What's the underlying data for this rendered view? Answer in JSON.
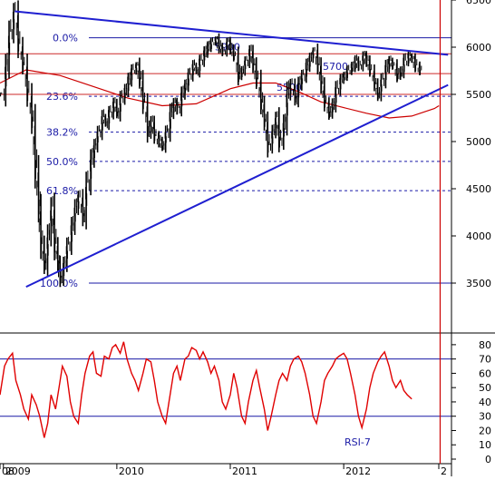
{
  "chart_data": [
    {
      "type": "line",
      "title": "",
      "y_axis": {
        "scale": "linear",
        "ylim": [
          3000,
          6500
        ],
        "tick_labels": [
          "6500",
          "6000",
          "5500",
          "5000",
          "4500",
          "4000",
          "3500"
        ]
      },
      "x_axis": {
        "range": [
          2008.97,
          2012.95
        ],
        "tick_labels": [
          "08",
          "2009",
          "2010",
          "2011",
          "2012",
          "2"
        ]
      },
      "grid": false,
      "fib_levels": [
        {
          "label": "0.0%",
          "value": 6100
        },
        {
          "label": "23.6%",
          "value": 5480
        },
        {
          "label": "38.2%",
          "value": 5100
        },
        {
          "label": "50.0%",
          "value": 4790
        },
        {
          "label": "61.8%",
          "value": 4480
        },
        {
          "label": "100.0%",
          "value": 3500
        }
      ],
      "resistance_levels": [
        {
          "label": "5900",
          "value": 5930
        },
        {
          "label": "5700",
          "value": 5720
        },
        {
          "label": "5500",
          "value": 5500
        }
      ],
      "trendlines": [
        {
          "name": "downtrend",
          "points": [
            [
              2009.1,
              6380
            ],
            [
              2012.92,
              5920
            ]
          ]
        },
        {
          "name": "uptrend",
          "points": [
            [
              2009.2,
              3460
            ],
            [
              2012.92,
              5600
            ]
          ]
        }
      ],
      "vertical_marker": {
        "x": 2012.85,
        "color": "#cc0000"
      },
      "moving_average": {
        "color": "#cc0000",
        "points": [
          [
            2008.97,
            5620
          ],
          [
            2009.2,
            5760
          ],
          [
            2009.5,
            5700
          ],
          [
            2009.8,
            5580
          ],
          [
            2010.1,
            5460
          ],
          [
            2010.4,
            5380
          ],
          [
            2010.7,
            5400
          ],
          [
            2011.0,
            5560
          ],
          [
            2011.2,
            5620
          ],
          [
            2011.4,
            5620
          ],
          [
            2011.6,
            5530
          ],
          [
            2011.8,
            5420
          ],
          [
            2012.0,
            5360
          ],
          [
            2012.2,
            5300
          ],
          [
            2012.4,
            5250
          ],
          [
            2012.6,
            5270
          ],
          [
            2012.8,
            5350
          ],
          [
            2012.84,
            5380
          ]
        ]
      },
      "series": [
        {
          "type": "price-bars",
          "color": "#000000",
          "points": [
            [
              2008.97,
              5500
            ],
            [
              2009.02,
              5800
            ],
            [
              2009.05,
              6150
            ],
            [
              2009.09,
              6360
            ],
            [
              2009.13,
              6020
            ],
            [
              2009.17,
              5800
            ],
            [
              2009.21,
              5500
            ],
            [
              2009.25,
              5200
            ],
            [
              2009.28,
              4700
            ],
            [
              2009.31,
              4300
            ],
            [
              2009.33,
              3900
            ],
            [
              2009.36,
              3700
            ],
            [
              2009.39,
              4000
            ],
            [
              2009.42,
              4300
            ],
            [
              2009.45,
              3900
            ],
            [
              2009.48,
              3700
            ],
            [
              2009.5,
              3550
            ],
            [
              2009.53,
              3700
            ],
            [
              2009.56,
              3900
            ],
            [
              2009.6,
              4100
            ],
            [
              2009.63,
              4300
            ],
            [
              2009.66,
              4400
            ],
            [
              2009.7,
              4200
            ],
            [
              2009.73,
              4550
            ],
            [
              2009.77,
              4800
            ],
            [
              2009.8,
              4950
            ],
            [
              2009.83,
              5100
            ],
            [
              2009.87,
              5250
            ],
            [
              2009.9,
              5200
            ],
            [
              2009.93,
              5300
            ],
            [
              2009.97,
              5400
            ],
            [
              2010.0,
              5300
            ],
            [
              2010.03,
              5450
            ],
            [
              2010.07,
              5550
            ],
            [
              2010.1,
              5650
            ],
            [
              2010.13,
              5750
            ],
            [
              2010.17,
              5800
            ],
            [
              2010.2,
              5650
            ],
            [
              2010.23,
              5400
            ],
            [
              2010.27,
              5100
            ],
            [
              2010.3,
              5200
            ],
            [
              2010.33,
              5050
            ],
            [
              2010.37,
              5000
            ],
            [
              2010.4,
              4950
            ],
            [
              2010.43,
              5100
            ],
            [
              2010.47,
              5300
            ],
            [
              2010.5,
              5400
            ],
            [
              2010.53,
              5350
            ],
            [
              2010.57,
              5500
            ],
            [
              2010.6,
              5600
            ],
            [
              2010.63,
              5700
            ],
            [
              2010.67,
              5800
            ],
            [
              2010.7,
              5750
            ],
            [
              2010.73,
              5850
            ],
            [
              2010.77,
              5950
            ],
            [
              2010.8,
              6000
            ],
            [
              2010.83,
              6050
            ],
            [
              2010.87,
              6080
            ],
            [
              2010.9,
              6000
            ],
            [
              2010.93,
              5950
            ],
            [
              2010.97,
              6050
            ],
            [
              2011.0,
              5980
            ],
            [
              2011.03,
              5900
            ],
            [
              2011.07,
              5700
            ],
            [
              2011.1,
              5750
            ],
            [
              2011.13,
              5850
            ],
            [
              2011.17,
              5950
            ],
            [
              2011.2,
              5800
            ],
            [
              2011.23,
              5650
            ],
            [
              2011.27,
              5400
            ],
            [
              2011.3,
              5200
            ],
            [
              2011.33,
              4950
            ],
            [
              2011.37,
              5100
            ],
            [
              2011.4,
              5250
            ],
            [
              2011.43,
              5000
            ],
            [
              2011.47,
              5200
            ],
            [
              2011.5,
              5500
            ],
            [
              2011.53,
              5600
            ],
            [
              2011.57,
              5450
            ],
            [
              2011.6,
              5600
            ],
            [
              2011.63,
              5700
            ],
            [
              2011.67,
              5800
            ],
            [
              2011.7,
              5880
            ],
            [
              2011.73,
              5950
            ],
            [
              2011.77,
              5800
            ],
            [
              2011.8,
              5600
            ],
            [
              2011.83,
              5400
            ],
            [
              2011.87,
              5300
            ],
            [
              2011.9,
              5400
            ],
            [
              2011.93,
              5550
            ],
            [
              2011.97,
              5650
            ],
            [
              2012.0,
              5700
            ],
            [
              2012.03,
              5750
            ],
            [
              2012.07,
              5800
            ],
            [
              2012.1,
              5850
            ],
            [
              2012.13,
              5800
            ],
            [
              2012.17,
              5900
            ],
            [
              2012.2,
              5850
            ],
            [
              2012.23,
              5750
            ],
            [
              2012.27,
              5600
            ],
            [
              2012.3,
              5500
            ],
            [
              2012.33,
              5650
            ],
            [
              2012.37,
              5780
            ],
            [
              2012.4,
              5850
            ],
            [
              2012.43,
              5800
            ],
            [
              2012.47,
              5700
            ],
            [
              2012.5,
              5750
            ],
            [
              2012.53,
              5850
            ],
            [
              2012.57,
              5900
            ],
            [
              2012.6,
              5870
            ],
            [
              2012.63,
              5800
            ],
            [
              2012.67,
              5750
            ]
          ]
        }
      ]
    },
    {
      "type": "line",
      "title": "",
      "legend_label": "RSI-7",
      "y_axis": {
        "scale": "linear",
        "ylim": [
          0,
          85
        ],
        "tick_labels": [
          "80",
          "70",
          "60",
          "50",
          "40",
          "30",
          "20",
          "10",
          "0"
        ]
      },
      "x_axis": {
        "range": [
          2008.97,
          2012.95
        ],
        "tick_labels": [
          "08",
          "2009",
          "2010",
          "2011",
          "2012",
          "2"
        ]
      },
      "grid": false,
      "reference_lines": [
        70,
        30
      ],
      "series": [
        {
          "name": "RSI-7",
          "color": "#e00000",
          "points": [
            [
              2008.97,
              45
            ],
            [
              2009.01,
              65
            ],
            [
              2009.04,
              70
            ],
            [
              2009.08,
              74
            ],
            [
              2009.11,
              55
            ],
            [
              2009.15,
              45
            ],
            [
              2009.18,
              35
            ],
            [
              2009.22,
              28
            ],
            [
              2009.25,
              45
            ],
            [
              2009.29,
              38
            ],
            [
              2009.32,
              30
            ],
            [
              2009.36,
              15
            ],
            [
              2009.39,
              25
            ],
            [
              2009.42,
              45
            ],
            [
              2009.46,
              35
            ],
            [
              2009.49,
              50
            ],
            [
              2009.52,
              65
            ],
            [
              2009.56,
              58
            ],
            [
              2009.59,
              40
            ],
            [
              2009.62,
              30
            ],
            [
              2009.66,
              25
            ],
            [
              2009.69,
              45
            ],
            [
              2009.72,
              60
            ],
            [
              2009.76,
              72
            ],
            [
              2009.79,
              75
            ],
            [
              2009.82,
              60
            ],
            [
              2009.86,
              58
            ],
            [
              2009.89,
              72
            ],
            [
              2009.93,
              70
            ],
            [
              2009.96,
              78
            ],
            [
              2009.99,
              80
            ],
            [
              2010.03,
              74
            ],
            [
              2010.06,
              82
            ],
            [
              2010.09,
              70
            ],
            [
              2010.13,
              60
            ],
            [
              2010.16,
              55
            ],
            [
              2010.19,
              48
            ],
            [
              2010.23,
              60
            ],
            [
              2010.26,
              70
            ],
            [
              2010.3,
              68
            ],
            [
              2010.33,
              55
            ],
            [
              2010.36,
              40
            ],
            [
              2010.4,
              30
            ],
            [
              2010.43,
              25
            ],
            [
              2010.46,
              40
            ],
            [
              2010.5,
              60
            ],
            [
              2010.53,
              65
            ],
            [
              2010.56,
              55
            ],
            [
              2010.6,
              70
            ],
            [
              2010.63,
              72
            ],
            [
              2010.66,
              78
            ],
            [
              2010.7,
              76
            ],
            [
              2010.73,
              70
            ],
            [
              2010.76,
              75
            ],
            [
              2010.8,
              68
            ],
            [
              2010.83,
              60
            ],
            [
              2010.86,
              65
            ],
            [
              2010.9,
              55
            ],
            [
              2010.93,
              40
            ],
            [
              2010.96,
              35
            ],
            [
              2011.0,
              45
            ],
            [
              2011.03,
              60
            ],
            [
              2011.06,
              50
            ],
            [
              2011.1,
              30
            ],
            [
              2011.13,
              25
            ],
            [
              2011.16,
              40
            ],
            [
              2011.2,
              55
            ],
            [
              2011.23,
              62
            ],
            [
              2011.26,
              50
            ],
            [
              2011.3,
              35
            ],
            [
              2011.33,
              20
            ],
            [
              2011.36,
              30
            ],
            [
              2011.4,
              45
            ],
            [
              2011.43,
              55
            ],
            [
              2011.46,
              60
            ],
            [
              2011.5,
              55
            ],
            [
              2011.53,
              65
            ],
            [
              2011.56,
              70
            ],
            [
              2011.6,
              72
            ],
            [
              2011.63,
              68
            ],
            [
              2011.66,
              60
            ],
            [
              2011.7,
              45
            ],
            [
              2011.73,
              30
            ],
            [
              2011.76,
              25
            ],
            [
              2011.8,
              40
            ],
            [
              2011.83,
              55
            ],
            [
              2011.86,
              60
            ],
            [
              2011.9,
              65
            ],
            [
              2011.93,
              70
            ],
            [
              2011.96,
              72
            ],
            [
              2012.0,
              74
            ],
            [
              2012.03,
              70
            ],
            [
              2012.06,
              60
            ],
            [
              2012.1,
              45
            ],
            [
              2012.13,
              30
            ],
            [
              2012.16,
              22
            ],
            [
              2012.2,
              35
            ],
            [
              2012.23,
              50
            ],
            [
              2012.26,
              60
            ],
            [
              2012.3,
              68
            ],
            [
              2012.33,
              72
            ],
            [
              2012.36,
              75
            ],
            [
              2012.4,
              65
            ],
            [
              2012.43,
              55
            ],
            [
              2012.46,
              50
            ],
            [
              2012.5,
              55
            ],
            [
              2012.53,
              48
            ],
            [
              2012.56,
              45
            ],
            [
              2012.6,
              42
            ]
          ]
        }
      ]
    }
  ],
  "legend": {
    "rsi_label": "RSI-7"
  }
}
